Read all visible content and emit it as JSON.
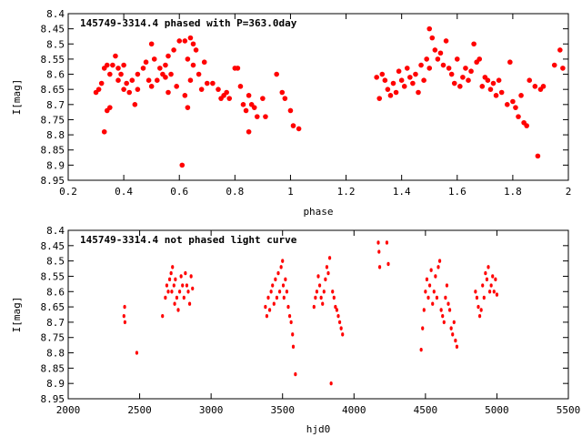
{
  "chart_data": [
    {
      "type": "scatter",
      "title": "145749-3314.4 phased with P=363.0day",
      "xlabel": "phase",
      "ylabel": "I[mag]",
      "xlim": [
        0.2,
        2.0
      ],
      "ylim": [
        8.4,
        8.95
      ],
      "y_inverted": true,
      "xticks": [
        "0.2",
        "0.4",
        "0.6",
        "0.8",
        "1",
        "1.2",
        "1.4",
        "1.6",
        "1.8",
        "2"
      ],
      "yticks": [
        "8.4",
        "8.45",
        "8.5",
        "8.55",
        "8.6",
        "8.65",
        "8.7",
        "8.75",
        "8.8",
        "8.85",
        "8.9",
        "8.95"
      ],
      "marker_color": "#ff0000",
      "grid": false,
      "series": [
        {
          "values": [
            [
              0.3,
              8.66
            ],
            [
              0.31,
              8.65
            ],
            [
              0.32,
              8.63
            ],
            [
              0.33,
              8.58
            ],
            [
              0.33,
              8.79
            ],
            [
              0.34,
              8.72
            ],
            [
              0.34,
              8.57
            ],
            [
              0.35,
              8.71
            ],
            [
              0.35,
              8.6
            ],
            [
              0.36,
              8.57
            ],
            [
              0.37,
              8.54
            ],
            [
              0.38,
              8.58
            ],
            [
              0.38,
              8.62
            ],
            [
              0.39,
              8.6
            ],
            [
              0.4,
              8.65
            ],
            [
              0.4,
              8.57
            ],
            [
              0.41,
              8.63
            ],
            [
              0.42,
              8.66
            ],
            [
              0.43,
              8.62
            ],
            [
              0.44,
              8.7
            ],
            [
              0.45,
              8.6
            ],
            [
              0.45,
              8.65
            ],
            [
              0.47,
              8.58
            ],
            [
              0.48,
              8.56
            ],
            [
              0.49,
              8.62
            ],
            [
              0.5,
              8.5
            ],
            [
              0.5,
              8.64
            ],
            [
              0.51,
              8.55
            ],
            [
              0.52,
              8.62
            ],
            [
              0.53,
              8.58
            ],
            [
              0.54,
              8.6
            ],
            [
              0.55,
              8.61
            ],
            [
              0.55,
              8.57
            ],
            [
              0.56,
              8.54
            ],
            [
              0.56,
              8.66
            ],
            [
              0.57,
              8.6
            ],
            [
              0.58,
              8.52
            ],
            [
              0.59,
              8.64
            ],
            [
              0.6,
              8.49
            ],
            [
              0.61,
              8.9
            ],
            [
              0.62,
              8.49
            ],
            [
              0.62,
              8.67
            ],
            [
              0.63,
              8.71
            ],
            [
              0.63,
              8.55
            ],
            [
              0.64,
              8.48
            ],
            [
              0.64,
              8.62
            ],
            [
              0.65,
              8.5
            ],
            [
              0.65,
              8.57
            ],
            [
              0.66,
              8.52
            ],
            [
              0.67,
              8.6
            ],
            [
              0.68,
              8.65
            ],
            [
              0.69,
              8.56
            ],
            [
              0.7,
              8.63
            ],
            [
              0.72,
              8.63
            ],
            [
              0.74,
              8.65
            ],
            [
              0.75,
              8.68
            ],
            [
              0.76,
              8.67
            ],
            [
              0.77,
              8.66
            ],
            [
              0.78,
              8.68
            ],
            [
              0.8,
              8.58
            ],
            [
              0.81,
              8.58
            ],
            [
              0.82,
              8.64
            ],
            [
              0.83,
              8.7
            ],
            [
              0.84,
              8.72
            ],
            [
              0.85,
              8.67
            ],
            [
              0.85,
              8.79
            ],
            [
              0.86,
              8.7
            ],
            [
              0.87,
              8.71
            ],
            [
              0.88,
              8.74
            ],
            [
              0.9,
              8.68
            ],
            [
              0.91,
              8.74
            ],
            [
              0.95,
              8.6
            ],
            [
              0.97,
              8.66
            ],
            [
              0.98,
              8.68
            ],
            [
              1.0,
              8.72
            ],
            [
              1.01,
              8.77
            ],
            [
              1.03,
              8.78
            ],
            [
              1.31,
              8.61
            ],
            [
              1.32,
              8.68
            ],
            [
              1.33,
              8.6
            ],
            [
              1.34,
              8.62
            ],
            [
              1.35,
              8.65
            ],
            [
              1.36,
              8.67
            ],
            [
              1.37,
              8.63
            ],
            [
              1.38,
              8.66
            ],
            [
              1.39,
              8.59
            ],
            [
              1.4,
              8.62
            ],
            [
              1.41,
              8.64
            ],
            [
              1.42,
              8.58
            ],
            [
              1.43,
              8.61
            ],
            [
              1.44,
              8.63
            ],
            [
              1.45,
              8.6
            ],
            [
              1.46,
              8.66
            ],
            [
              1.47,
              8.57
            ],
            [
              1.48,
              8.62
            ],
            [
              1.49,
              8.55
            ],
            [
              1.5,
              8.45
            ],
            [
              1.5,
              8.58
            ],
            [
              1.51,
              8.48
            ],
            [
              1.52,
              8.52
            ],
            [
              1.53,
              8.55
            ],
            [
              1.54,
              8.53
            ],
            [
              1.55,
              8.57
            ],
            [
              1.56,
              8.49
            ],
            [
              1.57,
              8.58
            ],
            [
              1.58,
              8.6
            ],
            [
              1.59,
              8.63
            ],
            [
              1.6,
              8.55
            ],
            [
              1.61,
              8.64
            ],
            [
              1.62,
              8.61
            ],
            [
              1.63,
              8.58
            ],
            [
              1.64,
              8.62
            ],
            [
              1.65,
              8.59
            ],
            [
              1.66,
              8.5
            ],
            [
              1.67,
              8.56
            ],
            [
              1.68,
              8.55
            ],
            [
              1.69,
              8.64
            ],
            [
              1.7,
              8.61
            ],
            [
              1.71,
              8.62
            ],
            [
              1.72,
              8.65
            ],
            [
              1.73,
              8.63
            ],
            [
              1.74,
              8.67
            ],
            [
              1.75,
              8.62
            ],
            [
              1.76,
              8.66
            ],
            [
              1.78,
              8.7
            ],
            [
              1.79,
              8.56
            ],
            [
              1.8,
              8.69
            ],
            [
              1.81,
              8.71
            ],
            [
              1.82,
              8.74
            ],
            [
              1.83,
              8.67
            ],
            [
              1.84,
              8.76
            ],
            [
              1.85,
              8.77
            ],
            [
              1.86,
              8.62
            ],
            [
              1.88,
              8.64
            ],
            [
              1.89,
              8.87
            ],
            [
              1.9,
              8.65
            ],
            [
              1.91,
              8.64
            ],
            [
              1.95,
              8.57
            ],
            [
              1.97,
              8.52
            ],
            [
              1.98,
              8.58
            ]
          ]
        }
      ]
    },
    {
      "type": "scatter",
      "title": "145749-3314.4 not phased light curve",
      "xlabel": "hjd0",
      "ylabel": "I[mag]",
      "xlim": [
        2000,
        5500
      ],
      "ylim": [
        8.4,
        8.95
      ],
      "y_inverted": true,
      "xticks": [
        "2000",
        "2500",
        "3000",
        "3500",
        "4000",
        "4500",
        "5000",
        "5500"
      ],
      "yticks": [
        "8.4",
        "8.45",
        "8.5",
        "8.55",
        "8.6",
        "8.65",
        "8.7",
        "8.75",
        "8.8",
        "8.85",
        "8.9",
        "8.95"
      ],
      "marker_color": "#ff0000",
      "grid": false,
      "series": [
        {
          "values": [
            [
              2390,
              8.68
            ],
            [
              2395,
              8.65
            ],
            [
              2397,
              8.7
            ],
            [
              2480,
              8.8
            ],
            [
              2660,
              8.68
            ],
            [
              2680,
              8.62
            ],
            [
              2690,
              8.58
            ],
            [
              2700,
              8.6
            ],
            [
              2710,
              8.56
            ],
            [
              2720,
              8.54
            ],
            [
              2725,
              8.6
            ],
            [
              2730,
              8.52
            ],
            [
              2740,
              8.58
            ],
            [
              2745,
              8.64
            ],
            [
              2750,
              8.56
            ],
            [
              2760,
              8.62
            ],
            [
              2770,
              8.66
            ],
            [
              2780,
              8.6
            ],
            [
              2790,
              8.55
            ],
            [
              2800,
              8.58
            ],
            [
              2810,
              8.62
            ],
            [
              2820,
              8.54
            ],
            [
              2830,
              8.58
            ],
            [
              2840,
              8.6
            ],
            [
              2850,
              8.64
            ],
            [
              2860,
              8.55
            ],
            [
              2870,
              8.59
            ],
            [
              3380,
              8.65
            ],
            [
              3390,
              8.68
            ],
            [
              3400,
              8.62
            ],
            [
              3410,
              8.66
            ],
            [
              3420,
              8.6
            ],
            [
              3430,
              8.58
            ],
            [
              3440,
              8.64
            ],
            [
              3450,
              8.56
            ],
            [
              3460,
              8.62
            ],
            [
              3470,
              8.54
            ],
            [
              3480,
              8.6
            ],
            [
              3490,
              8.52
            ],
            [
              3500,
              8.5
            ],
            [
              3505,
              8.58
            ],
            [
              3510,
              8.62
            ],
            [
              3520,
              8.56
            ],
            [
              3530,
              8.6
            ],
            [
              3540,
              8.65
            ],
            [
              3550,
              8.68
            ],
            [
              3560,
              8.7
            ],
            [
              3570,
              8.74
            ],
            [
              3575,
              8.78
            ],
            [
              3590,
              8.87
            ],
            [
              3720,
              8.65
            ],
            [
              3730,
              8.62
            ],
            [
              3740,
              8.6
            ],
            [
              3750,
              8.55
            ],
            [
              3760,
              8.58
            ],
            [
              3770,
              8.62
            ],
            [
              3780,
              8.64
            ],
            [
              3790,
              8.6
            ],
            [
              3800,
              8.56
            ],
            [
              3810,
              8.52
            ],
            [
              3820,
              8.54
            ],
            [
              3830,
              8.49
            ],
            [
              3840,
              8.9
            ],
            [
              3850,
              8.6
            ],
            [
              3860,
              8.62
            ],
            [
              3870,
              8.65
            ],
            [
              3880,
              8.66
            ],
            [
              3890,
              8.68
            ],
            [
              3900,
              8.7
            ],
            [
              3910,
              8.72
            ],
            [
              3920,
              8.74
            ],
            [
              4170,
              8.44
            ],
            [
              4175,
              8.47
            ],
            [
              4180,
              8.52
            ],
            [
              4230,
              8.44
            ],
            [
              4240,
              8.51
            ],
            [
              4470,
              8.79
            ],
            [
              4480,
              8.72
            ],
            [
              4490,
              8.66
            ],
            [
              4500,
              8.6
            ],
            [
              4510,
              8.56
            ],
            [
              4520,
              8.62
            ],
            [
              4530,
              8.58
            ],
            [
              4540,
              8.53
            ],
            [
              4550,
              8.64
            ],
            [
              4560,
              8.6
            ],
            [
              4570,
              8.55
            ],
            [
              4580,
              8.62
            ],
            [
              4590,
              8.52
            ],
            [
              4600,
              8.5
            ],
            [
              4610,
              8.66
            ],
            [
              4620,
              8.68
            ],
            [
              4630,
              8.7
            ],
            [
              4640,
              8.62
            ],
            [
              4650,
              8.58
            ],
            [
              4660,
              8.64
            ],
            [
              4670,
              8.66
            ],
            [
              4680,
              8.72
            ],
            [
              4690,
              8.74
            ],
            [
              4700,
              8.7
            ],
            [
              4710,
              8.76
            ],
            [
              4720,
              8.78
            ],
            [
              4850,
              8.6
            ],
            [
              4860,
              8.62
            ],
            [
              4870,
              8.65
            ],
            [
              4880,
              8.68
            ],
            [
              4890,
              8.66
            ],
            [
              4900,
              8.58
            ],
            [
              4910,
              8.62
            ],
            [
              4920,
              8.54
            ],
            [
              4930,
              8.56
            ],
            [
              4940,
              8.52
            ],
            [
              4950,
              8.6
            ],
            [
              4960,
              8.58
            ],
            [
              4970,
              8.55
            ],
            [
              4980,
              8.6
            ],
            [
              4990,
              8.56
            ],
            [
              5000,
              8.61
            ]
          ]
        }
      ]
    }
  ]
}
